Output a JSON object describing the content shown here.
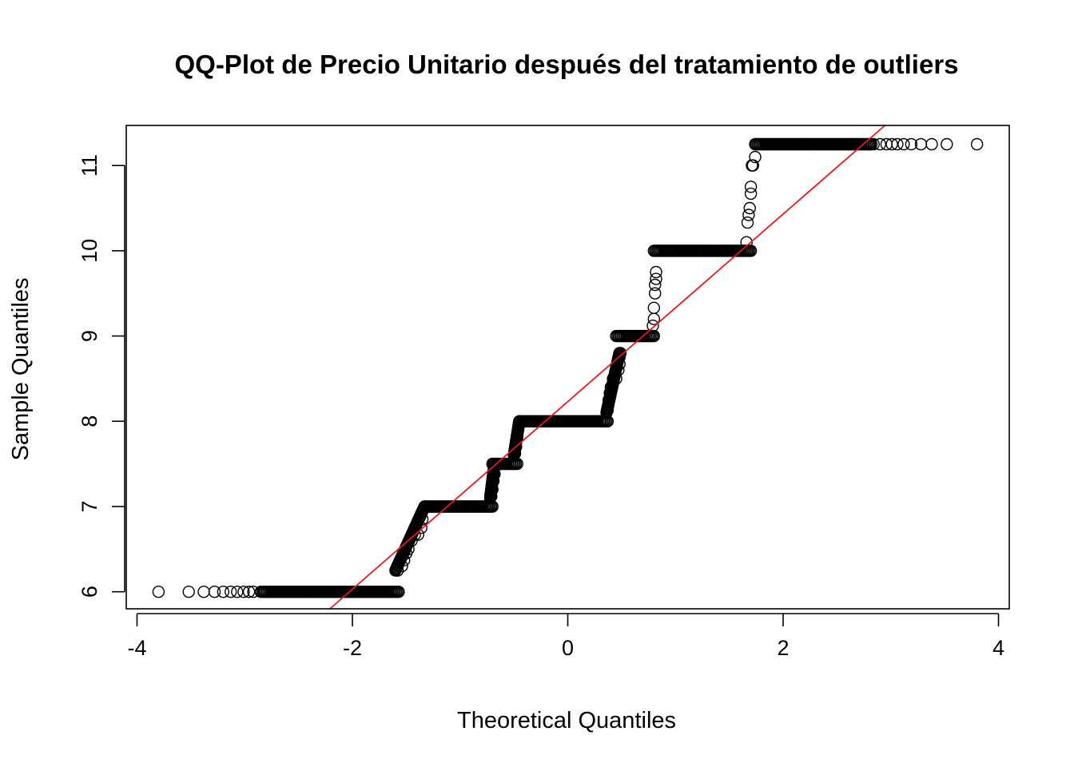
{
  "chart_data": {
    "type": "scatter",
    "title": "QQ-Plot de Precio Unitario después del tratamiento de outliers",
    "xlabel": "Theoretical Quantiles",
    "ylabel": "Sample Quantiles",
    "xlim": [
      -4.1,
      4.1
    ],
    "ylim": [
      5.8,
      11.47
    ],
    "xticks": [
      -4,
      -2,
      0,
      2,
      4
    ],
    "yticks": [
      6,
      7,
      8,
      9,
      10,
      11
    ],
    "grid": false,
    "legend": "none",
    "marker": "open-circle",
    "reference_line": {
      "slope": 1.1,
      "intercept": 8.23,
      "color": "#e41a1c"
    },
    "points_color": "#000000",
    "plateaus": [
      {
        "y": 6.0,
        "x_from": -2.85,
        "x_to": -1.57
      },
      {
        "y": 7.0,
        "x_from": -1.33,
        "x_to": -0.7
      },
      {
        "y": 7.5,
        "x_from": -0.7,
        "x_to": -0.47
      },
      {
        "y": 8.0,
        "x_from": -0.45,
        "x_to": 0.37
      },
      {
        "y": 9.0,
        "x_from": 0.45,
        "x_to": 0.8
      },
      {
        "y": 10.0,
        "x_from": 0.8,
        "x_to": 1.7
      },
      {
        "y": 11.25,
        "x_from": 1.74,
        "x_to": 2.82
      }
    ],
    "ramps": [
      {
        "y_from": 6.25,
        "y_to": 7.0,
        "x_from": -1.6,
        "x_to": -1.33
      },
      {
        "y_from": 7.1,
        "y_to": 7.5,
        "x_from": -0.72,
        "x_to": -0.68
      },
      {
        "y_from": 7.6,
        "y_to": 8.0,
        "x_from": -0.5,
        "x_to": -0.45
      },
      {
        "y_from": 8.1,
        "y_to": 8.8,
        "x_from": 0.36,
        "x_to": 0.48
      }
    ],
    "points": [
      [
        -3.8,
        6.0
      ],
      [
        -3.52,
        6.0
      ],
      [
        -3.38,
        6.0
      ],
      [
        -3.28,
        6.0
      ],
      [
        -3.2,
        6.0
      ],
      [
        -3.13,
        6.0
      ],
      [
        -3.07,
        6.0
      ],
      [
        -3.01,
        6.0
      ],
      [
        -2.96,
        6.0
      ],
      [
        -2.92,
        6.0
      ],
      [
        -1.58,
        6.25
      ],
      [
        -1.54,
        6.3
      ],
      [
        -1.52,
        6.37
      ],
      [
        -1.5,
        6.45
      ],
      [
        -1.48,
        6.5
      ],
      [
        -1.45,
        6.6
      ],
      [
        -1.42,
        6.67
      ],
      [
        -1.39,
        6.67
      ],
      [
        -1.36,
        6.75
      ],
      [
        -1.35,
        6.85
      ],
      [
        -0.71,
        7.12
      ],
      [
        -0.7,
        7.2
      ],
      [
        -0.69,
        7.3
      ],
      [
        -0.68,
        7.38
      ],
      [
        -0.49,
        7.62
      ],
      [
        -0.48,
        7.7
      ],
      [
        -0.47,
        7.8
      ],
      [
        -0.46,
        7.9
      ],
      [
        0.37,
        8.13
      ],
      [
        0.38,
        8.25
      ],
      [
        0.39,
        8.33
      ],
      [
        0.4,
        8.4
      ],
      [
        0.42,
        8.5
      ],
      [
        0.45,
        8.5
      ],
      [
        0.47,
        8.6
      ],
      [
        0.48,
        8.67
      ],
      [
        0.48,
        8.75
      ],
      [
        0.49,
        8.8
      ],
      [
        0.79,
        9.12
      ],
      [
        0.8,
        9.2
      ],
      [
        0.8,
        9.33
      ],
      [
        0.81,
        9.5
      ],
      [
        0.81,
        9.6
      ],
      [
        0.82,
        9.67
      ],
      [
        0.82,
        9.75
      ],
      [
        1.66,
        10.1
      ],
      [
        1.67,
        10.33
      ],
      [
        1.68,
        10.42
      ],
      [
        1.69,
        10.5
      ],
      [
        1.7,
        10.67
      ],
      [
        1.7,
        10.75
      ],
      [
        1.71,
        11.0
      ],
      [
        1.72,
        11.0
      ],
      [
        1.74,
        11.1
      ],
      [
        2.84,
        11.25
      ],
      [
        2.9,
        11.25
      ],
      [
        2.96,
        11.25
      ],
      [
        3.01,
        11.25
      ],
      [
        3.06,
        11.25
      ],
      [
        3.12,
        11.25
      ],
      [
        3.19,
        11.25
      ],
      [
        3.28,
        11.25
      ],
      [
        3.38,
        11.25
      ],
      [
        3.52,
        11.25
      ],
      [
        3.8,
        11.25
      ]
    ]
  }
}
